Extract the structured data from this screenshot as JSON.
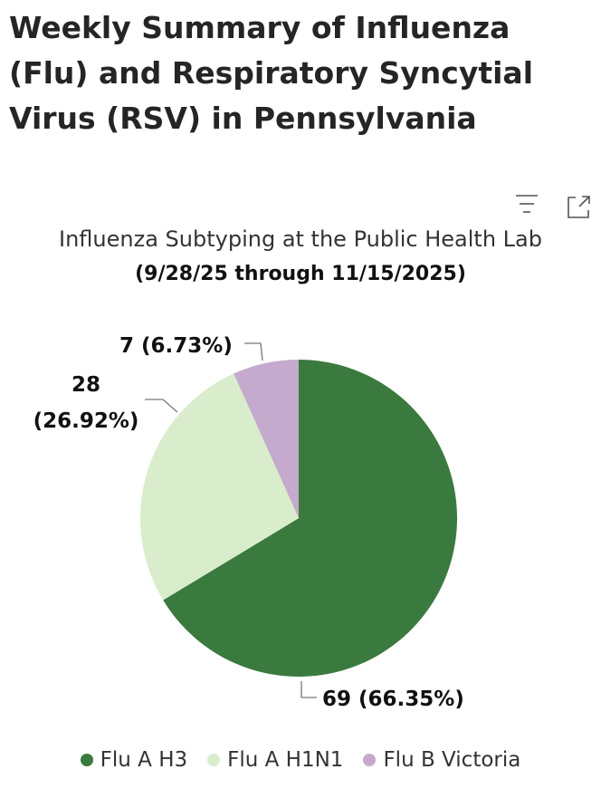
{
  "header": {
    "title": "Weekly Summary of Influenza (Flu) and Respiratory Syncytial Virus (RSV) in Pennsylvania"
  },
  "chart_data": {
    "type": "pie",
    "title": "Influenza Subtyping at the Public Health Lab",
    "subtitle": "(9/28/25 through 11/15/2025)",
    "categories": [
      "Flu A H3",
      "Flu A H1N1",
      "Flu B Victoria"
    ],
    "values": [
      69,
      28,
      7
    ],
    "value_labels": [
      "69 (66.35%)",
      "28 (26.92%)",
      "7 (6.73%)"
    ],
    "colors": [
      "#3b7a3f",
      "#d9edcc",
      "#c4aacd"
    ],
    "legend": "bottom"
  }
}
